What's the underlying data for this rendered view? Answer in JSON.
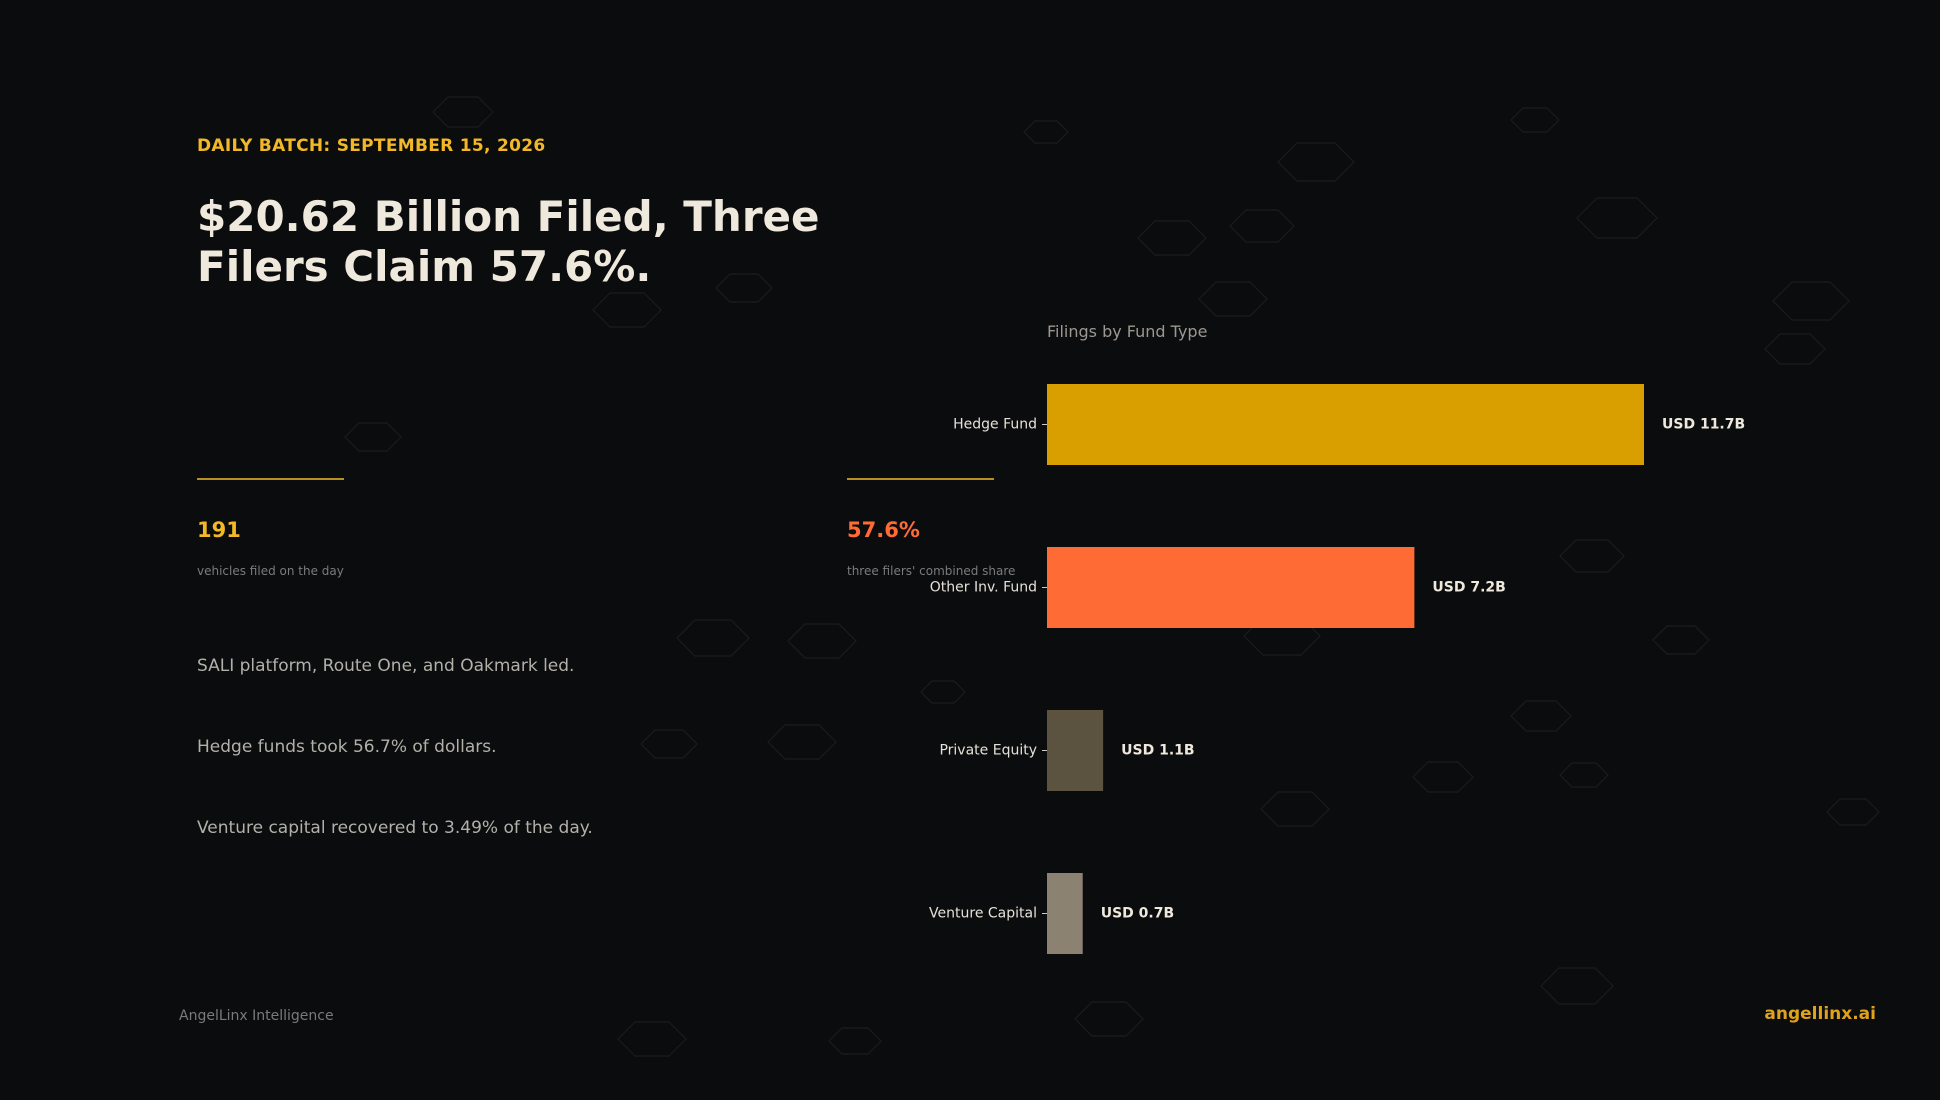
{
  "header": {
    "kicker": "DAILY BATCH: SEPTEMBER 15, 2026",
    "headline": "$20.62 Billion Filed, Three Filers Claim 57.6%."
  },
  "stats": [
    {
      "value": "191",
      "label": "vehicles filed on the day",
      "color": "#f2b826"
    },
    {
      "value": "57.6%",
      "label": "three filers' combined share",
      "color": "#ff6b35"
    }
  ],
  "bullets": [
    "SALI platform, Route One, and Oakmark led.",
    "Hedge funds took 56.7% of dollars.",
    "Venture capital recovered to 3.49% of the day."
  ],
  "footer": {
    "brand": "AngelLinx Intelligence",
    "site": "angellinx.ai"
  },
  "colors": {
    "background": "#0b0c0e",
    "accent": "#f2b826",
    "rule": "#b8901f",
    "hex_stroke": "#1b1c1e",
    "site": "#e0a21a"
  },
  "chart_data": {
    "type": "bar",
    "orientation": "horizontal",
    "title": "Filings by Fund Type",
    "categories": [
      "Hedge Fund",
      "Other Inv. Fund",
      "Private Equity",
      "Venture Capital"
    ],
    "values": [
      11.7,
      7.2,
      1.1,
      0.7
    ],
    "value_labels": [
      "USD 11.7B",
      "USD 7.2B",
      "USD 1.1B",
      "USD 0.7B"
    ],
    "bar_colors": [
      "#d99e00",
      "#ff6b35",
      "#5c5240",
      "#8c8271"
    ],
    "xlim": [
      0,
      11.7
    ],
    "unit": "USD B",
    "grid": false,
    "legend": "none"
  }
}
